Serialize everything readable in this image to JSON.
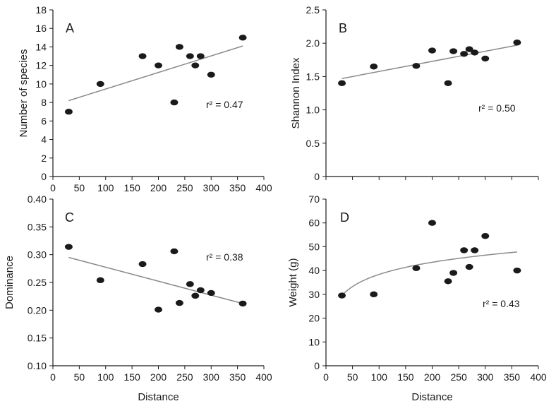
{
  "chart_data": [
    {
      "type": "scatter",
      "panel": "A",
      "xlabel": "",
      "ylabel": "Number of species",
      "xlim": [
        0,
        400
      ],
      "ylim": [
        0,
        18
      ],
      "xticks": [
        "0",
        "50",
        "100",
        "150",
        "200",
        "250",
        "300",
        "350",
        "400"
      ],
      "yticks": [
        "0",
        "2",
        "4",
        "6",
        "8",
        "10",
        "12",
        "14",
        "16",
        "18"
      ],
      "r2": "r² = 0.47",
      "points": [
        {
          "x": 30,
          "y": 7
        },
        {
          "x": 90,
          "y": 10
        },
        {
          "x": 170,
          "y": 13
        },
        {
          "x": 200,
          "y": 12
        },
        {
          "x": 230,
          "y": 8
        },
        {
          "x": 240,
          "y": 14
        },
        {
          "x": 260,
          "y": 13
        },
        {
          "x": 270,
          "y": 12
        },
        {
          "x": 280,
          "y": 13
        },
        {
          "x": 300,
          "y": 11
        },
        {
          "x": 360,
          "y": 15
        }
      ],
      "fit": {
        "kind": "linear",
        "x": [
          30,
          360
        ],
        "y": [
          8.2,
          14.1
        ]
      }
    },
    {
      "type": "scatter",
      "panel": "B",
      "xlabel": "",
      "ylabel": "Shannon Index",
      "xlim": [
        0,
        400
      ],
      "ylim": [
        0,
        2.5
      ],
      "yticks": [
        "0",
        "0.5",
        "1.0",
        "1.5",
        "2.0",
        "2.5"
      ],
      "r2": "r² = 0.50",
      "points": [
        {
          "x": 30,
          "y": 1.4
        },
        {
          "x": 90,
          "y": 1.65
        },
        {
          "x": 170,
          "y": 1.66
        },
        {
          "x": 200,
          "y": 1.89
        },
        {
          "x": 230,
          "y": 1.4
        },
        {
          "x": 240,
          "y": 1.88
        },
        {
          "x": 260,
          "y": 1.84
        },
        {
          "x": 270,
          "y": 1.91
        },
        {
          "x": 280,
          "y": 1.86
        },
        {
          "x": 300,
          "y": 1.77
        },
        {
          "x": 360,
          "y": 2.01
        }
      ],
      "fit": {
        "kind": "linear",
        "x": [
          30,
          360
        ],
        "y": [
          1.47,
          1.97
        ]
      }
    },
    {
      "type": "scatter",
      "panel": "C",
      "xlabel": "Distance",
      "ylabel": "Dominance",
      "xlim": [
        0,
        400
      ],
      "ylim": [
        0.1,
        0.4
      ],
      "xticks": [
        "0",
        "50",
        "100",
        "150",
        "200",
        "250",
        "300",
        "350",
        "400"
      ],
      "yticks": [
        "0.10",
        "0.15",
        "0.20",
        "0.25",
        "0.30",
        "0.35",
        "0.40"
      ],
      "r2": "r² = 0.38",
      "points": [
        {
          "x": 30,
          "y": 0.314
        },
        {
          "x": 90,
          "y": 0.254
        },
        {
          "x": 170,
          "y": 0.283
        },
        {
          "x": 200,
          "y": 0.201
        },
        {
          "x": 230,
          "y": 0.306
        },
        {
          "x": 240,
          "y": 0.213
        },
        {
          "x": 260,
          "y": 0.247
        },
        {
          "x": 270,
          "y": 0.226
        },
        {
          "x": 280,
          "y": 0.236
        },
        {
          "x": 300,
          "y": 0.231
        },
        {
          "x": 360,
          "y": 0.212
        }
      ],
      "fit": {
        "kind": "linear",
        "x": [
          30,
          360
        ],
        "y": [
          0.295,
          0.212
        ]
      }
    },
    {
      "type": "scatter",
      "panel": "D",
      "xlabel": "Distance",
      "ylabel": "Weight (g)",
      "xlim": [
        0,
        400
      ],
      "ylim": [
        0,
        70
      ],
      "xticks": [
        "0",
        "50",
        "100",
        "150",
        "200",
        "250",
        "300",
        "350",
        "400"
      ],
      "yticks": [
        "0",
        "10",
        "20",
        "30",
        "40",
        "50",
        "60",
        "70"
      ],
      "r2": "r² = 0.43",
      "points": [
        {
          "x": 30,
          "y": 29.5
        },
        {
          "x": 90,
          "y": 30
        },
        {
          "x": 170,
          "y": 41
        },
        {
          "x": 200,
          "y": 60
        },
        {
          "x": 230,
          "y": 35.5
        },
        {
          "x": 240,
          "y": 39
        },
        {
          "x": 260,
          "y": 48.5
        },
        {
          "x": 270,
          "y": 41.5
        },
        {
          "x": 280,
          "y": 48.5
        },
        {
          "x": 300,
          "y": 54.5
        },
        {
          "x": 360,
          "y": 40
        }
      ],
      "fit": {
        "kind": "log",
        "x": [
          30,
          360
        ],
        "y": [
          29.5,
          47.8
        ]
      }
    }
  ],
  "colors": {
    "marker": "#1a1a1a",
    "fit_line": "#8a8a8a",
    "axis": "#1a1a1a"
  }
}
